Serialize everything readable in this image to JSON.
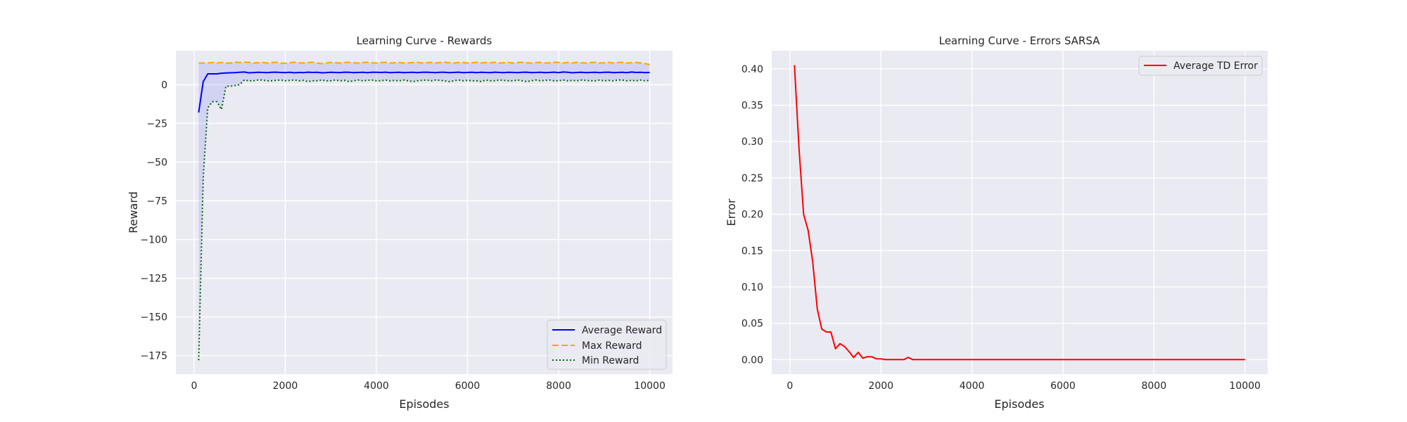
{
  "chart_data": [
    {
      "type": "line",
      "title": "Learning Curve - Rewards",
      "xlabel": "Episodes",
      "ylabel": "Reward",
      "xlim": [
        -400,
        10500
      ],
      "ylim": [
        -187,
        22
      ],
      "xticks": [
        0,
        2000,
        4000,
        6000,
        8000,
        10000
      ],
      "yticks": [
        0,
        -25,
        -50,
        -75,
        -100,
        -125,
        -150,
        -175
      ],
      "ytick_labels": [
        "0",
        "−25",
        "−50",
        "−75",
        "−100",
        "−125",
        "−150",
        "−175"
      ],
      "grid": true,
      "legend_position": "lower-right",
      "x": [
        100,
        200,
        300,
        400,
        500,
        600,
        700,
        800,
        900,
        1000,
        1100,
        1200,
        1300,
        1400,
        1500,
        1600,
        1700,
        1800,
        1900,
        2000,
        2100,
        2200,
        2300,
        2400,
        2500,
        2600,
        2700,
        2800,
        2900,
        3000,
        3100,
        3200,
        3300,
        3400,
        3500,
        3600,
        3700,
        3800,
        3900,
        4000,
        4100,
        4200,
        4300,
        4400,
        4500,
        4600,
        4700,
        4800,
        4900,
        5000,
        5100,
        5200,
        5300,
        5400,
        5500,
        5600,
        5700,
        5800,
        5900,
        6000,
        6100,
        6200,
        6300,
        6400,
        6500,
        6600,
        6700,
        6800,
        6900,
        7000,
        7100,
        7200,
        7300,
        7400,
        7500,
        7600,
        7700,
        7800,
        7900,
        8000,
        8100,
        8200,
        8300,
        8400,
        8500,
        8600,
        8700,
        8800,
        8900,
        9000,
        9100,
        9200,
        9300,
        9400,
        9500,
        9600,
        9700,
        9800,
        9900,
        10000
      ],
      "series": [
        {
          "name": "Average Reward",
          "color": "#0000ff",
          "style": "solid",
          "values": [
            -18,
            2,
            7,
            7,
            7,
            7.4,
            7.6,
            7.7,
            7.8,
            8,
            8.2,
            7.7,
            7.8,
            8,
            7.9,
            7.8,
            8,
            8.1,
            7.9,
            7.8,
            8,
            7.7,
            7.9,
            7.8,
            8.1,
            7.9,
            8,
            7.7,
            7.8,
            8,
            7.9,
            7.8,
            8.1,
            8,
            7.8,
            7.9,
            8,
            7.8,
            8,
            8,
            7.9,
            8.1,
            7.8,
            7.9,
            8,
            7.8,
            7.9,
            8,
            7.8,
            8,
            8.1,
            7.9,
            7.8,
            8,
            8,
            7.8,
            7.9,
            8.1,
            7.8,
            7.9,
            8,
            7.8,
            8,
            7.9,
            7.8,
            8.1,
            7.9,
            7.8,
            8,
            7.9,
            7.8,
            8,
            8.1,
            7.8,
            7.9,
            8,
            7.8,
            7.9,
            8.1,
            7.8,
            8.2,
            8,
            7.7,
            7.9,
            8,
            7.8,
            7.9,
            8,
            7.8,
            8,
            8.1,
            7.8,
            7.9,
            8,
            7.8,
            8.2,
            7.9,
            8,
            7.8,
            7.9
          ]
        },
        {
          "name": "Max Reward",
          "color": "#ffa500",
          "style": "dashed",
          "values": [
            14,
            14,
            14,
            14.4,
            14,
            14.4,
            14,
            14,
            14.6,
            14.3,
            14.5,
            14.5,
            14,
            14.2,
            14.4,
            14,
            14.3,
            14.5,
            14,
            13.8,
            14.2,
            14.5,
            14.2,
            14,
            14.3,
            14.5,
            14,
            13.6,
            14,
            14.4,
            14.2,
            14,
            14.3,
            14.5,
            14.2,
            14,
            14.4,
            14.5,
            14.2,
            14,
            14.3,
            14.5,
            14,
            14.2,
            14.4,
            14,
            14.1,
            14.3,
            14.5,
            14,
            14.2,
            14.4,
            14,
            14.3,
            14.5,
            14.2,
            14,
            14.3,
            14.4,
            14,
            14.2,
            14.5,
            14,
            14.3,
            14.1,
            14.5,
            14,
            14.2,
            14.4,
            14,
            14.3,
            14.5,
            14.2,
            14,
            14.3,
            14.4,
            14,
            14.2,
            14.5,
            14.4,
            14,
            14.3,
            14,
            14.5,
            14.2,
            14,
            14.3,
            14.5,
            14,
            14.2,
            14.4,
            14,
            14.3,
            14.5,
            14,
            14.2,
            14.4,
            14,
            13.6,
            13
          ]
        },
        {
          "name": "Min Reward",
          "color": "#006400",
          "style": "dotted",
          "values": [
            -178,
            -60,
            -15,
            -11,
            -11,
            -16,
            -1,
            -1,
            -0.5,
            0,
            3,
            2.5,
            2.5,
            3,
            3,
            2.5,
            2.5,
            2.8,
            3,
            2.5,
            2.8,
            3,
            2.5,
            2.8,
            2,
            2.5,
            2.5,
            3,
            2.5,
            2.5,
            3,
            2.5,
            2.8,
            2,
            2.5,
            3,
            2.5,
            2.8,
            3,
            2.5,
            2.5,
            3,
            2.5,
            2.8,
            2.5,
            3,
            2.5,
            2,
            2.5,
            2.8,
            3,
            2.5,
            3,
            2.8,
            2.5,
            2,
            2.5,
            3,
            2.5,
            2.8,
            2.5,
            2.5,
            2,
            3,
            2.5,
            2.5,
            3,
            2.8,
            2.5,
            2.5,
            3,
            2.5,
            2,
            2.5,
            3,
            2.5,
            2.8,
            3,
            2.5,
            2.5,
            3,
            2.5,
            2.8,
            2.5,
            3,
            2.8,
            2.5,
            2.5,
            3,
            2.5,
            2.8,
            2.5,
            3,
            3,
            2.5,
            2.8,
            2.5,
            3,
            2.5,
            2.8
          ]
        }
      ],
      "band": {
        "color": "#0000ff",
        "between": [
          "Min Reward",
          "Max Reward"
        ]
      }
    },
    {
      "type": "line",
      "title": "Learning Curve - Errors SARSA",
      "xlabel": "Episodes",
      "ylabel": "Error",
      "xlim": [
        -400,
        10500
      ],
      "ylim": [
        -0.02,
        0.425
      ],
      "xticks": [
        0,
        2000,
        4000,
        6000,
        8000,
        10000
      ],
      "yticks": [
        0,
        0.05,
        0.1,
        0.15,
        0.2,
        0.25,
        0.3,
        0.35,
        0.4
      ],
      "ytick_labels": [
        "0.00",
        "0.05",
        "0.10",
        "0.15",
        "0.20",
        "0.25",
        "0.30",
        "0.35",
        "0.40"
      ],
      "grid": true,
      "legend_position": "top-right",
      "x": [
        100,
        200,
        300,
        400,
        500,
        600,
        700,
        800,
        900,
        1000,
        1100,
        1200,
        1300,
        1400,
        1500,
        1600,
        1700,
        1800,
        1900,
        2000,
        2100,
        2200,
        2300,
        2400,
        2500,
        2600,
        2700,
        2800,
        2900,
        3000,
        3100,
        3200,
        3300,
        3400,
        3500,
        3600,
        3700,
        3800,
        3900,
        4000,
        4100,
        4200,
        4300,
        4400,
        4500,
        4600,
        4700,
        4800,
        4900,
        5000,
        5100,
        5200,
        5300,
        5400,
        5500,
        5600,
        5700,
        5800,
        5900,
        6000,
        6100,
        6200,
        6300,
        6400,
        6500,
        6600,
        6700,
        6800,
        6900,
        7000,
        7100,
        7200,
        7300,
        7400,
        7500,
        7600,
        7700,
        7800,
        7900,
        8000,
        8100,
        8200,
        8300,
        8400,
        8500,
        8600,
        8700,
        8800,
        8900,
        9000,
        9100,
        9200,
        9300,
        9400,
        9500,
        9600,
        9700,
        9800,
        9900,
        10000
      ],
      "series": [
        {
          "name": "Average TD Error",
          "color": "#ff0000",
          "style": "solid",
          "values": [
            0.405,
            0.29,
            0.2,
            0.178,
            0.135,
            0.07,
            0.042,
            0.038,
            0.038,
            0.015,
            0.022,
            0.018,
            0.011,
            0.003,
            0.01,
            0.002,
            0.004,
            0.004,
            0.001,
            0.001,
            0,
            0,
            0,
            0,
            0,
            0.003,
            0,
            0,
            0,
            0,
            0,
            0,
            0,
            0,
            0,
            0,
            0,
            0,
            0,
            0,
            0,
            0,
            0,
            0,
            0,
            0,
            0,
            0,
            0,
            0,
            0,
            0,
            0,
            0,
            0,
            0,
            0,
            0,
            0,
            0,
            0,
            0,
            0,
            0,
            0,
            0,
            0,
            0,
            0,
            0,
            0,
            0,
            0,
            0,
            0,
            0,
            0,
            0,
            0,
            0,
            0,
            0,
            0,
            0,
            0,
            0,
            0,
            0,
            0,
            0,
            0,
            0,
            0,
            0,
            0,
            0,
            0,
            0,
            0,
            0
          ]
        }
      ]
    }
  ]
}
